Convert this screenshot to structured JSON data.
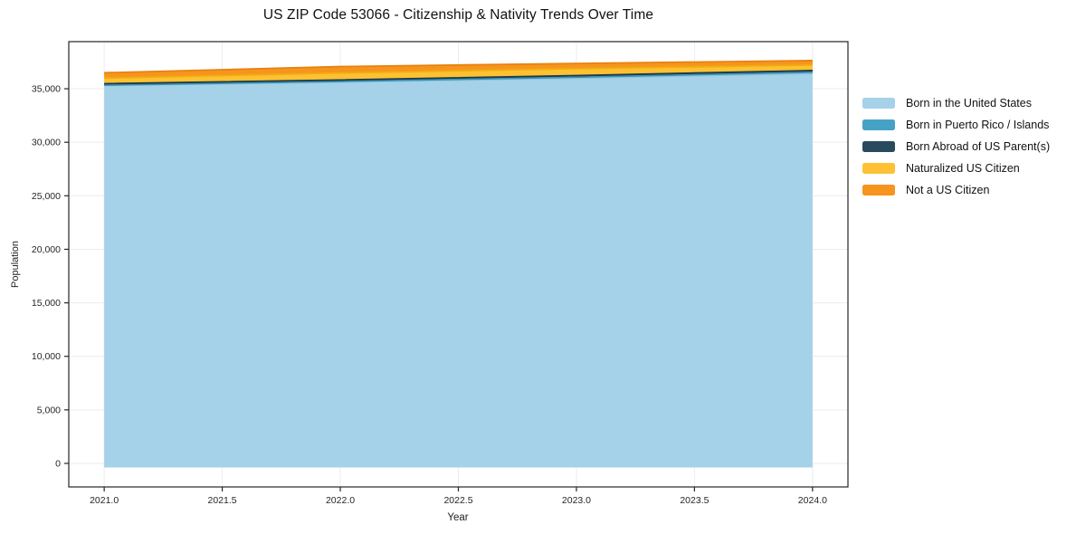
{
  "chart_data": {
    "type": "area",
    "stacked": true,
    "title": "US ZIP Code 53066 - Citizenship & Nativity Trends Over Time",
    "xlabel": "Year",
    "ylabel": "Population",
    "x": [
      2021,
      2022,
      2023,
      2024
    ],
    "series": [
      {
        "name": "Born in the United States",
        "color": "#A5D2E8",
        "edge_color": "#8FC3DD",
        "values": [
          35300,
          35620,
          35990,
          36420
        ]
      },
      {
        "name": "Born in Puerto Rico / Islands",
        "color": "#46A2C5",
        "edge_color": "#3A92B5",
        "values": [
          40,
          60,
          90,
          120
        ]
      },
      {
        "name": "Born Abroad of US Parent(s)",
        "color": "#29495C",
        "edge_color": "#1E3947",
        "values": [
          130,
          140,
          150,
          160
        ]
      },
      {
        "name": "Naturalized US Citizen",
        "color": "#FDC133",
        "edge_color": "#EFAE10",
        "values": [
          520,
          650,
          650,
          510
        ]
      },
      {
        "name": "Not a US Citizen",
        "color": "#F7941E",
        "edge_color": "#E8820E",
        "values": [
          500,
          600,
          480,
          420
        ]
      }
    ],
    "xlim": [
      2020.85,
      2024.15
    ],
    "ylim": [
      -2200,
      39400
    ],
    "xticks": [
      2021.0,
      2021.5,
      2022.0,
      2022.5,
      2023.0,
      2023.5,
      2024.0
    ],
    "xtick_labels": [
      "2021.0",
      "2021.5",
      "2022.0",
      "2022.5",
      "2023.0",
      "2023.5",
      "2024.0"
    ],
    "yticks": [
      0,
      5000,
      10000,
      15000,
      20000,
      25000,
      30000,
      35000
    ],
    "ytick_labels": [
      "0",
      "5,000",
      "10,000",
      "15,000",
      "20,000",
      "25,000",
      "30,000",
      "35,000"
    ],
    "grid": true,
    "legend_position": "right",
    "colors": {
      "grid": "#ECECEC",
      "spine": "#262626",
      "tick_label": "#262626",
      "background": "#FFFFFF"
    }
  }
}
